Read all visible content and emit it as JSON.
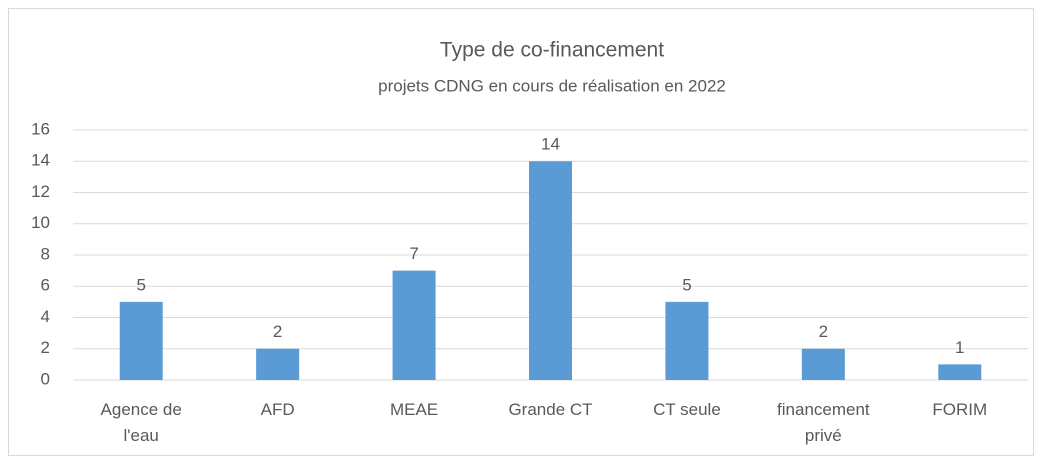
{
  "chart_data": {
    "type": "bar",
    "title": "Type de co-financement",
    "subtitle": "projets CDNG en cours de réalisation en 2022",
    "categories": [
      "Agence de l'eau",
      "AFD",
      "MEAE",
      "Grande CT",
      "CT seule",
      "financement privé",
      "FORIM"
    ],
    "values": [
      5,
      2,
      7,
      14,
      5,
      2,
      1
    ],
    "color": "#5b9bd5",
    "ylim": [
      0,
      16
    ],
    "yticks": [
      0,
      2,
      4,
      6,
      8,
      10,
      12,
      14,
      16
    ],
    "grid": true
  }
}
